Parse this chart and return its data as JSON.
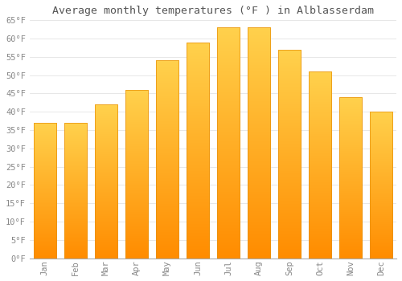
{
  "title": "Average monthly temperatures (°F ) in Alblasserdam",
  "months": [
    "Jan",
    "Feb",
    "Mar",
    "Apr",
    "May",
    "Jun",
    "Jul",
    "Aug",
    "Sep",
    "Oct",
    "Nov",
    "Dec"
  ],
  "values": [
    37,
    37,
    42,
    46,
    54,
    59,
    63,
    63,
    57,
    51,
    44,
    40
  ],
  "bar_color_top": "#FFB300",
  "bar_color_bottom": "#FF8C00",
  "bar_edge_color": "#E8900A",
  "background_color": "#FFFFFF",
  "grid_color": "#DDDDDD",
  "ylim": [
    0,
    65
  ],
  "yticks": [
    0,
    5,
    10,
    15,
    20,
    25,
    30,
    35,
    40,
    45,
    50,
    55,
    60,
    65
  ],
  "title_fontsize": 9.5,
  "tick_fontsize": 7.5,
  "title_color": "#555555",
  "tick_color": "#888888",
  "figsize": [
    5.0,
    3.5
  ],
  "dpi": 100
}
